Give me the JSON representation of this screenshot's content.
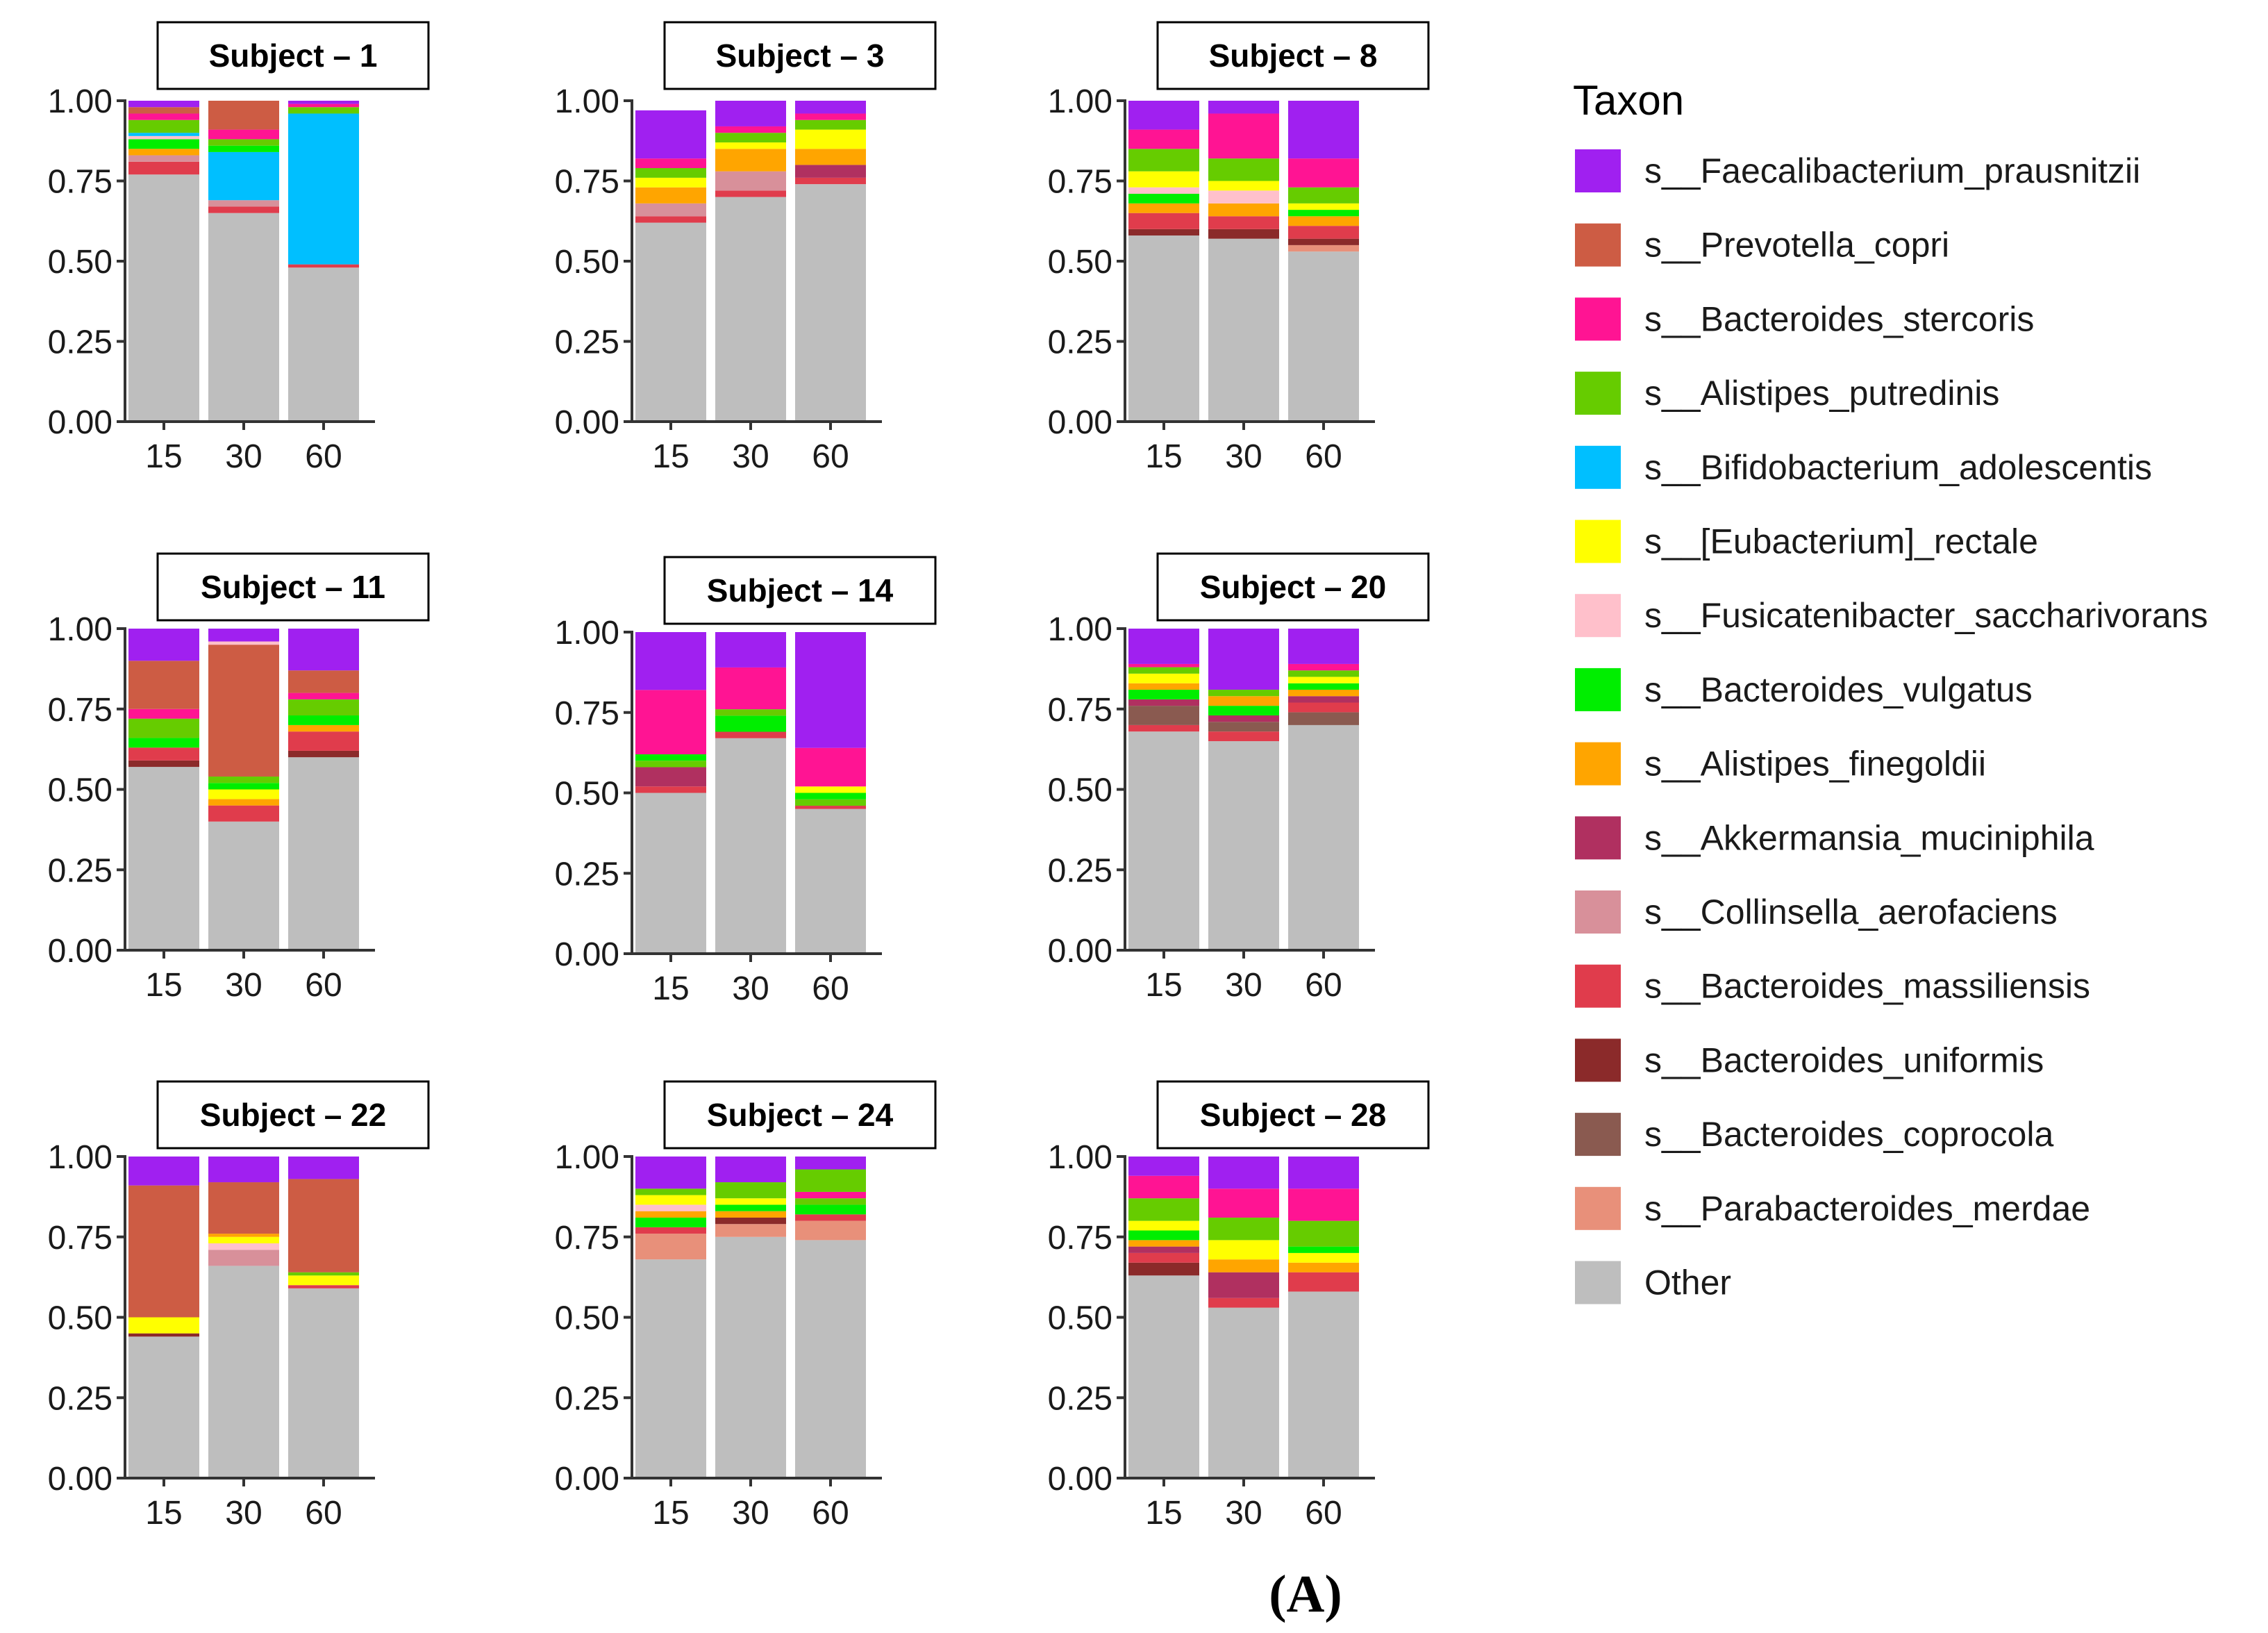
{
  "chart_data": {
    "type": "bar",
    "stacked": true,
    "panel_label": "(A)",
    "legend": {
      "title": "Taxon",
      "entries": [
        {
          "name": "s__Faecalibacterium_prausnitzii",
          "color": "#A020F0"
        },
        {
          "name": "s__Prevotella_copri",
          "color": "#CD5C44"
        },
        {
          "name": "s__Bacteroides_stercoris",
          "color": "#FF1493"
        },
        {
          "name": "s__Alistipes_putredinis",
          "color": "#66CC00"
        },
        {
          "name": "s__Bifidobacterium_adolescentis",
          "color": "#00BFFF"
        },
        {
          "name": "s__[Eubacterium]_rectale",
          "color": "#FFFF00"
        },
        {
          "name": "s__Fusicatenibacter_saccharivorans",
          "color": "#FFC0CB"
        },
        {
          "name": "s__Bacteroides_vulgatus",
          "color": "#00EE00"
        },
        {
          "name": "s__Alistipes_finegoldii",
          "color": "#FFA500"
        },
        {
          "name": "s__Akkermansia_muciniphila",
          "color": "#B03060"
        },
        {
          "name": "s__Collinsella_aerofaciens",
          "color": "#D8909A"
        },
        {
          "name": "s__Bacteroides_massiliensis",
          "color": "#E03C4C"
        },
        {
          "name": "s__Bacteroides_uniformis",
          "color": "#8B2A2A"
        },
        {
          "name": "s__Bacteroides_coprocola",
          "color": "#8A5A50"
        },
        {
          "name": "s__Parabacteroides_merdae",
          "color": "#E8907A"
        },
        {
          "name": "Other",
          "color": "#BEBEBE"
        }
      ]
    },
    "yticks": [
      "0.00",
      "0.25",
      "0.50",
      "0.75",
      "1.00"
    ],
    "ylim": [
      0,
      1
    ],
    "categories": [
      "15",
      "30",
      "60"
    ],
    "panels": [
      {
        "subject": "Subject – 1",
        "bars": [
          {
            "Other": 0.77,
            "s__Bacteroides_massiliensis": 0.04,
            "s__Collinsella_aerofaciens": 0.02,
            "s__Alistipes_finegoldii": 0.02,
            "s__Bacteroides_vulgatus": 0.03,
            "s__Fusicatenibacter_saccharivorans": 0.01,
            "s__Bifidobacterium_adolescentis": 0.01,
            "s__Alistipes_putredinis": 0.04,
            "s__Bacteroides_stercoris": 0.02,
            "s__Prevotella_copri": 0.02,
            "s__Faecalibacterium_prausnitzii": 0.02
          },
          {
            "Other": 0.65,
            "s__Bacteroides_massiliensis": 0.02,
            "s__Collinsella_aerofaciens": 0.02,
            "s__Bifidobacterium_adolescentis": 0.15,
            "s__Bacteroides_vulgatus": 0.02,
            "s__Alistipes_putredinis": 0.02,
            "s__Bacteroides_stercoris": 0.03,
            "s__Prevotella_copri": 0.09
          },
          {
            "Other": 0.48,
            "s__Bacteroides_massiliensis": 0.01,
            "s__Bifidobacterium_adolescentis": 0.47,
            "s__Alistipes_putredinis": 0.02,
            "s__Bacteroides_stercoris": 0.01,
            "s__Faecalibacterium_prausnitzii": 0.01
          }
        ]
      },
      {
        "subject": "Subject – 3",
        "bars": [
          {
            "Other": 0.62,
            "s__Bacteroides_massiliensis": 0.02,
            "s__Collinsella_aerofaciens": 0.04,
            "s__Alistipes_finegoldii": 0.05,
            "s__[Eubacterium]_rectale": 0.03,
            "s__Alistipes_putredinis": 0.03,
            "s__Bacteroides_stercoris": 0.03,
            "s__Faecalibacterium_prausnitzii": 0.15
          },
          {
            "Other": 0.7,
            "s__Bacteroides_massiliensis": 0.02,
            "s__Collinsella_aerofaciens": 0.06,
            "s__Alistipes_finegoldii": 0.07,
            "s__[Eubacterium]_rectale": 0.02,
            "s__Alistipes_putredinis": 0.03,
            "s__Bacteroides_stercoris": 0.02,
            "s__Faecalibacterium_prausnitzii": 0.08
          },
          {
            "Other": 0.74,
            "s__Bacteroides_massiliensis": 0.02,
            "s__Akkermansia_muciniphila": 0.04,
            "s__Alistipes_finegoldii": 0.05,
            "s__[Eubacterium]_rectale": 0.06,
            "s__Alistipes_putredinis": 0.03,
            "s__Bacteroides_stercoris": 0.02,
            "s__Faecalibacterium_prausnitzii": 0.04
          }
        ]
      },
      {
        "subject": "Subject – 8",
        "bars": [
          {
            "Other": 0.58,
            "s__Bacteroides_uniformis": 0.02,
            "s__Bacteroides_massiliensis": 0.05,
            "s__Alistipes_finegoldii": 0.03,
            "s__Bacteroides_vulgatus": 0.03,
            "s__Fusicatenibacter_saccharivorans": 0.02,
            "s__[Eubacterium]_rectale": 0.05,
            "s__Alistipes_putredinis": 0.07,
            "s__Bacteroides_stercoris": 0.06,
            "s__Faecalibacterium_prausnitzii": 0.09
          },
          {
            "Other": 0.57,
            "s__Bacteroides_uniformis": 0.03,
            "s__Bacteroides_massiliensis": 0.04,
            "s__Alistipes_finegoldii": 0.04,
            "s__Fusicatenibacter_saccharivorans": 0.04,
            "s__[Eubacterium]_rectale": 0.03,
            "s__Alistipes_putredinis": 0.07,
            "s__Bacteroides_stercoris": 0.14,
            "s__Faecalibacterium_prausnitzii": 0.04
          },
          {
            "Other": 0.53,
            "s__Parabacteroides_merdae": 0.02,
            "s__Bacteroides_uniformis": 0.02,
            "s__Bacteroides_massiliensis": 0.04,
            "s__Alistipes_finegoldii": 0.03,
            "s__Bacteroides_vulgatus": 0.02,
            "s__[Eubacterium]_rectale": 0.02,
            "s__Alistipes_putredinis": 0.05,
            "s__Bacteroides_stercoris": 0.09,
            "s__Faecalibacterium_prausnitzii": 0.18
          }
        ]
      },
      {
        "subject": "Subject – 11",
        "bars": [
          {
            "Other": 0.57,
            "s__Bacteroides_uniformis": 0.02,
            "s__Bacteroides_massiliensis": 0.04,
            "s__Bacteroides_vulgatus": 0.03,
            "s__Alistipes_putredinis": 0.06,
            "s__Bacteroides_stercoris": 0.03,
            "s__Prevotella_copri": 0.15,
            "s__Faecalibacterium_prausnitzii": 0.1
          },
          {
            "Other": 0.4,
            "s__Bacteroides_massiliensis": 0.05,
            "s__Alistipes_finegoldii": 0.02,
            "s__[Eubacterium]_rectale": 0.03,
            "s__Bacteroides_vulgatus": 0.02,
            "s__Alistipes_putredinis": 0.02,
            "s__Prevotella_copri": 0.41,
            "s__Fusicatenibacter_saccharivorans": 0.01,
            "s__Faecalibacterium_prausnitzii": 0.04
          },
          {
            "Other": 0.6,
            "s__Bacteroides_uniformis": 0.02,
            "s__Bacteroides_massiliensis": 0.06,
            "s__Alistipes_finegoldii": 0.02,
            "s__Bacteroides_vulgatus": 0.03,
            "s__Alistipes_putredinis": 0.05,
            "s__Bacteroides_stercoris": 0.02,
            "s__Prevotella_copri": 0.07,
            "s__Faecalibacterium_prausnitzii": 0.13
          }
        ]
      },
      {
        "subject": "Subject – 14",
        "bars": [
          {
            "Other": 0.5,
            "s__Bacteroides_massiliensis": 0.02,
            "s__Akkermansia_muciniphila": 0.06,
            "s__Alistipes_putredinis": 0.02,
            "s__Bacteroides_vulgatus": 0.02,
            "s__Bacteroides_stercoris": 0.2,
            "s__Faecalibacterium_prausnitzii": 0.18
          },
          {
            "Other": 0.67,
            "s__Bacteroides_massiliensis": 0.02,
            "s__Bacteroides_vulgatus": 0.05,
            "s__Alistipes_putredinis": 0.02,
            "s__Bacteroides_stercoris": 0.13,
            "s__Faecalibacterium_prausnitzii": 0.11
          },
          {
            "Other": 0.45,
            "s__Bacteroides_massiliensis": 0.01,
            "s__Alistipes_putredinis": 0.02,
            "s__Bacteroides_vulgatus": 0.02,
            "s__[Eubacterium]_rectale": 0.02,
            "s__Bacteroides_stercoris": 0.12,
            "s__Faecalibacterium_prausnitzii": 0.36
          }
        ]
      },
      {
        "subject": "Subject – 20",
        "bars": [
          {
            "Other": 0.68,
            "s__Bacteroides_massiliensis": 0.02,
            "s__Bacteroides_coprocola": 0.06,
            "s__Akkermansia_muciniphila": 0.02,
            "s__Bacteroides_vulgatus": 0.03,
            "s__Alistipes_finegoldii": 0.02,
            "s__[Eubacterium]_rectale": 0.03,
            "s__Alistipes_putredinis": 0.02,
            "s__Bacteroides_stercoris": 0.01,
            "s__Faecalibacterium_prausnitzii": 0.11
          },
          {
            "Other": 0.65,
            "s__Bacteroides_massiliensis": 0.03,
            "s__Bacteroides_coprocola": 0.03,
            "s__Akkermansia_muciniphila": 0.02,
            "s__Bacteroides_vulgatus": 0.03,
            "s__Alistipes_finegoldii": 0.03,
            "s__Alistipes_putredinis": 0.02,
            "s__Faecalibacterium_prausnitzii": 0.19
          },
          {
            "Other": 0.7,
            "s__Bacteroides_coprocola": 0.04,
            "s__Bacteroides_massiliensis": 0.03,
            "s__Akkermansia_muciniphila": 0.02,
            "s__Alistipes_finegoldii": 0.02,
            "s__Bacteroides_vulgatus": 0.02,
            "s__[Eubacterium]_rectale": 0.02,
            "s__Alistipes_putredinis": 0.02,
            "s__Bacteroides_stercoris": 0.02,
            "s__Faecalibacterium_prausnitzii": 0.11
          }
        ]
      },
      {
        "subject": "Subject – 22",
        "bars": [
          {
            "Other": 0.44,
            "s__Bacteroides_uniformis": 0.01,
            "s__[Eubacterium]_rectale": 0.05,
            "s__Prevotella_copri": 0.41,
            "s__Faecalibacterium_prausnitzii": 0.09
          },
          {
            "Other": 0.66,
            "s__Collinsella_aerofaciens": 0.05,
            "s__Fusicatenibacter_saccharivorans": 0.02,
            "s__[Eubacterium]_rectale": 0.02,
            "s__Alistipes_finegoldii": 0.01,
            "s__Prevotella_copri": 0.16,
            "s__Faecalibacterium_prausnitzii": 0.08
          },
          {
            "Other": 0.59,
            "s__Bacteroides_massiliensis": 0.01,
            "s__[Eubacterium]_rectale": 0.03,
            "s__Alistipes_putredinis": 0.01,
            "s__Prevotella_copri": 0.29,
            "s__Faecalibacterium_prausnitzii": 0.07
          }
        ]
      },
      {
        "subject": "Subject – 24",
        "bars": [
          {
            "Other": 0.68,
            "s__Parabacteroides_merdae": 0.08,
            "s__Bacteroides_massiliensis": 0.02,
            "s__Bacteroides_vulgatus": 0.03,
            "s__Alistipes_finegoldii": 0.02,
            "s__Fusicatenibacter_saccharivorans": 0.02,
            "s__[Eubacterium]_rectale": 0.03,
            "s__Alistipes_putredinis": 0.02,
            "s__Faecalibacterium_prausnitzii": 0.1
          },
          {
            "Other": 0.75,
            "s__Parabacteroides_merdae": 0.04,
            "s__Bacteroides_uniformis": 0.02,
            "s__Alistipes_finegoldii": 0.02,
            "s__Bacteroides_vulgatus": 0.02,
            "s__[Eubacterium]_rectale": 0.02,
            "s__Alistipes_putredinis": 0.05,
            "s__Faecalibacterium_prausnitzii": 0.08
          },
          {
            "Other": 0.74,
            "s__Parabacteroides_merdae": 0.06,
            "s__Bacteroides_massiliensis": 0.02,
            "s__Bacteroides_vulgatus": 0.03,
            "s__Alistipes_putredinis": 0.02,
            "s__Bacteroides_stercoris": 0.02,
            "s__Alistipes_putredinis_2": 0.07,
            "s__Faecalibacterium_prausnitzii": 0.04
          }
        ]
      },
      {
        "subject": "Subject – 28",
        "bars": [
          {
            "Other": 0.63,
            "s__Bacteroides_uniformis": 0.04,
            "s__Bacteroides_massiliensis": 0.03,
            "s__Akkermansia_muciniphila": 0.02,
            "s__Alistipes_finegoldii": 0.02,
            "s__Bacteroides_vulgatus": 0.03,
            "s__[Eubacterium]_rectale": 0.03,
            "s__Alistipes_putredinis": 0.07,
            "s__Bacteroides_stercoris": 0.07,
            "s__Faecalibacterium_prausnitzii": 0.06
          },
          {
            "Other": 0.53,
            "s__Bacteroides_massiliensis": 0.03,
            "s__Akkermansia_muciniphila": 0.08,
            "s__Alistipes_finegoldii": 0.04,
            "s__[Eubacterium]_rectale": 0.06,
            "s__Alistipes_putredinis": 0.07,
            "s__Bacteroides_stercoris": 0.09,
            "s__Faecalibacterium_prausnitzii": 0.1
          },
          {
            "Other": 0.58,
            "s__Bacteroides_massiliensis": 0.06,
            "s__Alistipes_finegoldii": 0.03,
            "s__[Eubacterium]_rectale": 0.03,
            "s__Bacteroides_vulgatus": 0.02,
            "s__Alistipes_putredinis": 0.08,
            "s__Bacteroides_stercoris": 0.1,
            "s__Faecalibacterium_prausnitzii": 0.1
          }
        ]
      }
    ]
  }
}
